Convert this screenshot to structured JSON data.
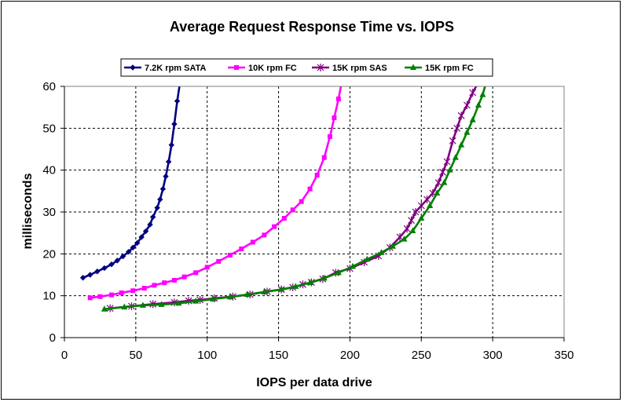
{
  "chart_data": {
    "type": "line",
    "title": "Average Request Response Time vs. IOPS",
    "xlabel": "IOPS per data drive",
    "ylabel": "milliseconds",
    "xlim": [
      0,
      350
    ],
    "ylim": [
      0,
      60
    ],
    "xticks": [
      0,
      50,
      100,
      150,
      200,
      250,
      300,
      350
    ],
    "yticks": [
      0,
      10,
      20,
      30,
      40,
      50,
      60
    ],
    "grid": true,
    "legend_position": "top",
    "series": [
      {
        "name": "7.2K rpm SATA",
        "color": "#000080",
        "marker": "diamond",
        "x": [
          13,
          18,
          23,
          28,
          33,
          37,
          41,
          45,
          48,
          51,
          54,
          57,
          60,
          62,
          65,
          67,
          69,
          71,
          73,
          75,
          77,
          79,
          81
        ],
        "y": [
          14.3,
          15,
          15.8,
          16.6,
          17.5,
          18.4,
          19.4,
          20.5,
          21.5,
          22.6,
          24,
          25.4,
          27,
          28.8,
          31,
          33,
          35.5,
          38.5,
          42,
          46,
          51,
          56.5,
          61
        ]
      },
      {
        "name": "10K rpm FC",
        "color": "#FF00FF",
        "marker": "square",
        "x": [
          18,
          25,
          33,
          40,
          48,
          56,
          63,
          70,
          77,
          84,
          92,
          100,
          108,
          116,
          124,
          132,
          140,
          147,
          154,
          160,
          166,
          172,
          177,
          182,
          186,
          189,
          192,
          194
        ],
        "y": [
          9.5,
          9.8,
          10.2,
          10.7,
          11.2,
          11.8,
          12.5,
          13.1,
          13.7,
          14.5,
          15.5,
          16.8,
          18.2,
          19.7,
          21.2,
          22.8,
          24.5,
          26.5,
          28.5,
          30.5,
          32.5,
          35.5,
          38.8,
          43,
          48,
          52.5,
          57,
          60.5
        ]
      },
      {
        "name": "15K rpm SAS",
        "color": "#800080",
        "marker": "star",
        "x": [
          32,
          47,
          62,
          77,
          87,
          95,
          105,
          118,
          130,
          142,
          152,
          160,
          167,
          173,
          181,
          190,
          200,
          210,
          220,
          228,
          235,
          240,
          243,
          246,
          250,
          254,
          258,
          262,
          265,
          268,
          272,
          275,
          278,
          282,
          286,
          290
        ],
        "y": [
          7,
          7.5,
          8,
          8.4,
          8.8,
          9,
          9.4,
          9.8,
          10.3,
          11,
          11.5,
          12,
          12.7,
          13.2,
          14,
          15.5,
          16.5,
          18,
          19.5,
          21.5,
          24,
          26,
          28,
          30,
          31.5,
          33,
          34.5,
          37,
          39.5,
          42,
          47,
          50,
          53,
          55.5,
          58.5,
          61
        ]
      },
      {
        "name": "15K rpm FC",
        "color": "#008000",
        "marker": "triangle",
        "x": [
          28,
          42,
          55,
          68,
          80,
          92,
          104,
          116,
          128,
          140,
          152,
          162,
          172,
          182,
          192,
          202,
          212,
          222,
          230,
          238,
          244,
          250,
          256,
          261,
          266,
          270,
          274,
          278,
          282,
          286,
          290,
          293,
          295
        ],
        "y": [
          6.8,
          7.3,
          7.7,
          7.9,
          8.2,
          8.7,
          9.2,
          9.7,
          10.3,
          10.9,
          11.5,
          12.2,
          13.1,
          14.2,
          15.5,
          17,
          18.7,
          20.3,
          21.8,
          23.5,
          25.5,
          28.5,
          31.5,
          34.5,
          37,
          40,
          43,
          46,
          49,
          52,
          55.5,
          58,
          60.5
        ]
      }
    ]
  }
}
